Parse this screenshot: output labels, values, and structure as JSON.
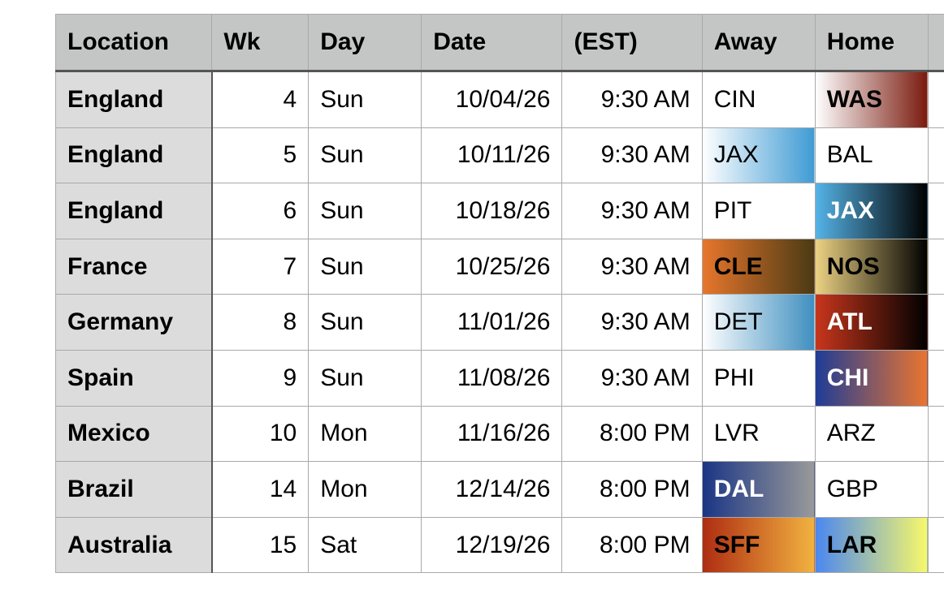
{
  "headers": [
    "Location",
    "Wk",
    "Day",
    "Date",
    "(EST)",
    "Away",
    "Home",
    ""
  ],
  "rows": [
    {
      "location": "England",
      "wk": "4",
      "day": "Sun",
      "date": "10/04/26",
      "time": "9:30 AM",
      "away": "CIN",
      "home": "WAS"
    },
    {
      "location": "England",
      "wk": "5",
      "day": "Sun",
      "date": "10/11/26",
      "time": "9:30 AM",
      "away": "JAX",
      "home": "BAL"
    },
    {
      "location": "England",
      "wk": "6",
      "day": "Sun",
      "date": "10/18/26",
      "time": "9:30 AM",
      "away": "PIT",
      "home": "JAX"
    },
    {
      "location": "France",
      "wk": "7",
      "day": "Sun",
      "date": "10/25/26",
      "time": "9:30 AM",
      "away": "CLE",
      "home": "NOS"
    },
    {
      "location": "Germany",
      "wk": "8",
      "day": "Sun",
      "date": "11/01/26",
      "time": "9:30 AM",
      "away": "DET",
      "home": "ATL"
    },
    {
      "location": "Spain",
      "wk": "9",
      "day": "Sun",
      "date": "11/08/26",
      "time": "9:30 AM",
      "away": "PHI",
      "home": "CHI"
    },
    {
      "location": "Mexico",
      "wk": "10",
      "day": "Mon",
      "date": "11/16/26",
      "time": "8:00 PM",
      "away": "LVR",
      "home": "ARZ"
    },
    {
      "location": "Brazil",
      "wk": "14",
      "day": "Mon",
      "date": "12/14/26",
      "time": "8:00 PM",
      "away": "DAL",
      "home": "GBP"
    },
    {
      "location": "Australia",
      "wk": "15",
      "day": "Sat",
      "date": "12/19/26",
      "time": "8:00 PM",
      "away": "SFF",
      "home": "LAR"
    }
  ],
  "team_styles": {
    "WAS": {
      "gradient": [
        "#ffffff",
        "#7a1a0e"
      ],
      "bold": true,
      "text": "#000000"
    },
    "JAX_away": {
      "gradient": [
        "#ffffff",
        "#3f9bd4"
      ],
      "bold": false,
      "text": "#000000"
    },
    "JAX_home": {
      "gradient": [
        "#55b4e8",
        "#000000"
      ],
      "bold": true,
      "text": "#ffffff"
    },
    "CLE": {
      "gradient": [
        "#e8762c",
        "#4a3a14"
      ],
      "bold": true,
      "text": "#000000"
    },
    "NOS": {
      "gradient": [
        "#ecd283",
        "#000000"
      ],
      "bold": true,
      "text": "#000000"
    },
    "DET": {
      "gradient": [
        "#ffffff",
        "#3f8fc0"
      ],
      "bold": false,
      "text": "#000000"
    },
    "ATL": {
      "gradient": [
        "#c8361c",
        "#000000"
      ],
      "bold": true,
      "text": "#ffffff"
    },
    "CHI": {
      "gradient": [
        "#1e3c96",
        "#ea7530"
      ],
      "bold": true,
      "text": "#ffffff"
    },
    "DAL": {
      "gradient": [
        "#1a3585",
        "#9a9a9a"
      ],
      "bold": true,
      "text": "#ffffff"
    },
    "SFF": {
      "gradient": [
        "#ae2c12",
        "#f2b340"
      ],
      "bold": true,
      "text": "#000000"
    },
    "LAR": {
      "gradient": [
        "#4a87f0",
        "#f8f86a"
      ],
      "bold": true,
      "text": "#000000"
    }
  }
}
